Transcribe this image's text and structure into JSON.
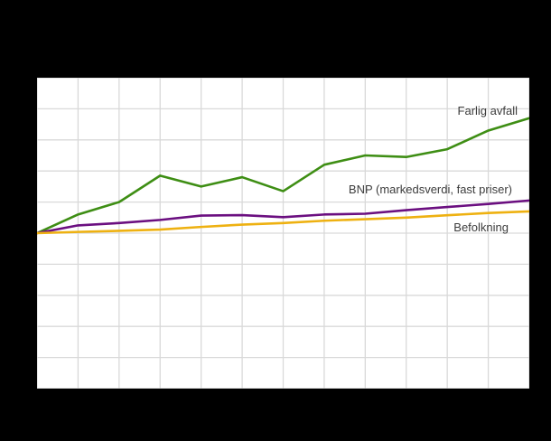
{
  "page": {
    "background_color": "#000000",
    "plot_background_color": "#ffffff",
    "gridline_color": "#d9d9d9",
    "label_text_color": "#3c3c3c"
  },
  "chart_data": {
    "type": "line",
    "title": "",
    "xlabel": "",
    "ylabel": "",
    "x": [
      0,
      1,
      2,
      3,
      4,
      5,
      6,
      7,
      8,
      9,
      10,
      11,
      12
    ],
    "x_tick_labels_visible": false,
    "y_tick_labels_visible": false,
    "ylim": [
      0,
      200
    ],
    "y_gridline_step": 20,
    "x_gridline_count": 12,
    "grid": true,
    "baseline_index_value": 100,
    "legend_position": "inline-annotations",
    "series": [
      {
        "name": "Farlig avfall",
        "color": "#3e8e14",
        "values": [
          100,
          112,
          120,
          137,
          130,
          136,
          127,
          144,
          150,
          149,
          154,
          166,
          174
        ]
      },
      {
        "name": "BNP (markedsverdi, fast priser)",
        "color": "#6b0f80",
        "values": [
          100,
          105,
          106.5,
          108.5,
          111.3,
          111.6,
          110.3,
          112,
          112.5,
          114.8,
          116.8,
          118.8,
          121
        ]
      },
      {
        "name": "Befolkning",
        "color": "#eeb111",
        "values": [
          100,
          100.8,
          101.5,
          102.3,
          104,
          105.5,
          106.5,
          108,
          109,
          110,
          111.5,
          113,
          114
        ]
      }
    ]
  }
}
